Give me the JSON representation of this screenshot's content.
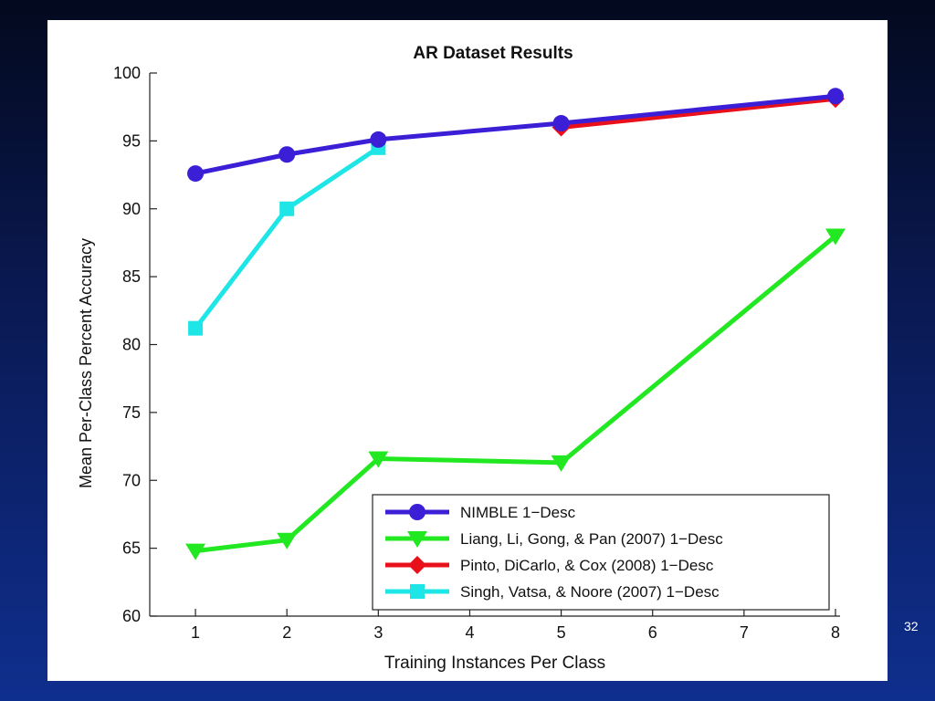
{
  "slide": {
    "number": "32"
  },
  "colors": {
    "background": "#0a1a55",
    "panel": "#ffffff"
  },
  "chart_data": {
    "type": "line",
    "title": "AR Dataset Results",
    "xlabel": "Training Instances Per Class",
    "ylabel": "Mean Per-Class Percent Accuracy",
    "xlim": [
      0.5,
      8.05
    ],
    "ylim": [
      60,
      100
    ],
    "xticks": [
      1,
      2,
      3,
      4,
      5,
      6,
      7,
      8
    ],
    "yticks": [
      60,
      65,
      70,
      75,
      80,
      85,
      90,
      95,
      100
    ],
    "grid": false,
    "legend_position": "bottom-right",
    "series": [
      {
        "name": "NIMBLE 1−Desc",
        "color": "#3a1fd6",
        "marker": "circle",
        "x": [
          1,
          2,
          3,
          5,
          8
        ],
        "y": [
          92.6,
          94.0,
          95.1,
          96.3,
          98.3
        ]
      },
      {
        "name": "Liang, Li, Gong, & Pan (2007)  1−Desc",
        "color": "#22e822",
        "marker": "triangle-down",
        "x": [
          1,
          2,
          3,
          5,
          8
        ],
        "y": [
          64.8,
          65.6,
          71.6,
          71.3,
          88.0
        ]
      },
      {
        "name": "Pinto, DiCarlo, & Cox (2008)  1−Desc",
        "color": "#e8101a",
        "marker": "diamond",
        "x": [
          5,
          8
        ],
        "y": [
          96.0,
          98.1
        ]
      },
      {
        "name": "Singh, Vatsa, & Noore (2007)  1−Desc",
        "color": "#1fe6e6",
        "marker": "square",
        "x": [
          1,
          2,
          3
        ],
        "y": [
          81.2,
          90.0,
          94.5
        ]
      }
    ]
  }
}
